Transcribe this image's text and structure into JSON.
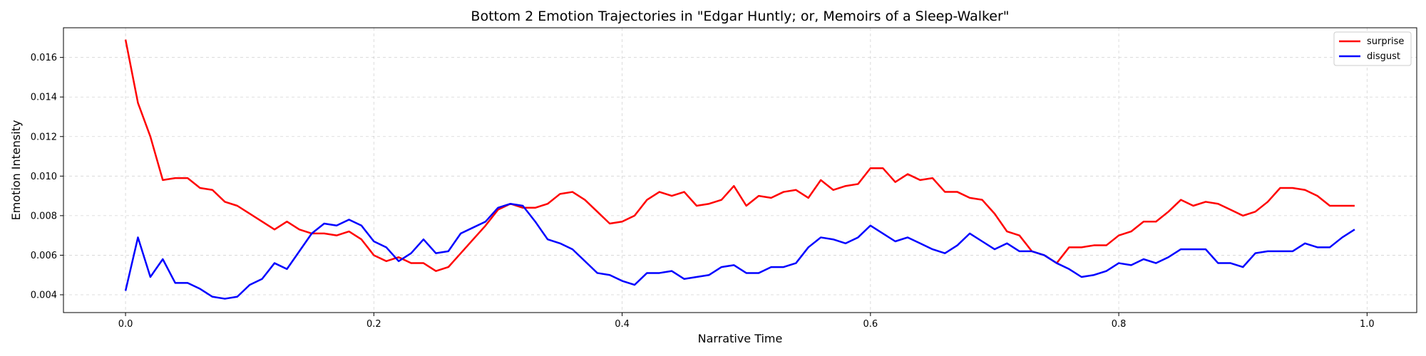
{
  "chart_data": {
    "type": "line",
    "title": "Bottom 2 Emotion Trajectories in \"Edgar Huntly; or, Memoirs of a Sleep-Walker\"",
    "xlabel": "Narrative Time",
    "ylabel": "Emotion Intensity",
    "xlim": [
      -0.05,
      1.04
    ],
    "ylim": [
      0.0031,
      0.0175
    ],
    "xticks": [
      0.0,
      0.2,
      0.4,
      0.6,
      0.8,
      1.0
    ],
    "xtick_labels": [
      "0.0",
      "0.2",
      "0.4",
      "0.6",
      "0.8",
      "1.0"
    ],
    "yticks": [
      0.004,
      0.006,
      0.008,
      0.01,
      0.012,
      0.014,
      0.016
    ],
    "ytick_labels": [
      "0.004",
      "0.006",
      "0.008",
      "0.010",
      "0.012",
      "0.014",
      "0.016"
    ],
    "grid": true,
    "legend_position": "top-right",
    "x": [
      0.0,
      0.01,
      0.02,
      0.03,
      0.04,
      0.05,
      0.06,
      0.07,
      0.08,
      0.09,
      0.1,
      0.11,
      0.12,
      0.13,
      0.14,
      0.15,
      0.16,
      0.17,
      0.18,
      0.19,
      0.2,
      0.21,
      0.22,
      0.23,
      0.24,
      0.25,
      0.26,
      0.27,
      0.28,
      0.29,
      0.3,
      0.31,
      0.32,
      0.33,
      0.34,
      0.35,
      0.36,
      0.37,
      0.38,
      0.39,
      0.4,
      0.41,
      0.42,
      0.43,
      0.44,
      0.45,
      0.46,
      0.47,
      0.48,
      0.49,
      0.5,
      0.51,
      0.52,
      0.53,
      0.54,
      0.55,
      0.56,
      0.57,
      0.58,
      0.59,
      0.6,
      0.61,
      0.62,
      0.63,
      0.64,
      0.65,
      0.66,
      0.67,
      0.68,
      0.69,
      0.7,
      0.71,
      0.72,
      0.73,
      0.74,
      0.75,
      0.76,
      0.77,
      0.78,
      0.79,
      0.8,
      0.81,
      0.82,
      0.83,
      0.84,
      0.85,
      0.86,
      0.87,
      0.88,
      0.89,
      0.9,
      0.91,
      0.92,
      0.93,
      0.94,
      0.95,
      0.96,
      0.97,
      0.98,
      0.99
    ],
    "series": [
      {
        "name": "surprise",
        "color": "#ff0000",
        "values": [
          0.0169,
          0.0137,
          0.012,
          0.0098,
          0.0099,
          0.0099,
          0.0094,
          0.0093,
          0.0087,
          0.0085,
          0.0081,
          0.0077,
          0.0073,
          0.0077,
          0.0073,
          0.0071,
          0.0071,
          0.007,
          0.0072,
          0.0068,
          0.006,
          0.0057,
          0.0059,
          0.0056,
          0.0056,
          0.0052,
          0.0054,
          0.0061,
          0.0068,
          0.0075,
          0.0083,
          0.0086,
          0.0084,
          0.0084,
          0.0086,
          0.0091,
          0.0092,
          0.0088,
          0.0082,
          0.0076,
          0.0077,
          0.008,
          0.0088,
          0.0092,
          0.009,
          0.0092,
          0.0085,
          0.0086,
          0.0088,
          0.0095,
          0.0085,
          0.009,
          0.0089,
          0.0092,
          0.0093,
          0.0089,
          0.0098,
          0.0093,
          0.0095,
          0.0096,
          0.0104,
          0.0104,
          0.0097,
          0.0101,
          0.0098,
          0.0099,
          0.0092,
          0.0092,
          0.0089,
          0.0088,
          0.0081,
          0.0072,
          0.007,
          0.0062,
          0.006,
          0.0056,
          0.0064,
          0.0064,
          0.0065,
          0.0065,
          0.007,
          0.0072,
          0.0077,
          0.0077,
          0.0082,
          0.0088,
          0.0085,
          0.0087,
          0.0086,
          0.0083,
          0.008,
          0.0082,
          0.0087,
          0.0094,
          0.0094,
          0.0093,
          0.009,
          0.0085,
          0.0085,
          0.0085
        ]
      },
      {
        "name": "disgust",
        "color": "#0000ff",
        "values": [
          0.0042,
          0.0069,
          0.0049,
          0.0058,
          0.0046,
          0.0046,
          0.0043,
          0.0039,
          0.0038,
          0.0039,
          0.0045,
          0.0048,
          0.0056,
          0.0053,
          0.0062,
          0.0071,
          0.0076,
          0.0075,
          0.0078,
          0.0075,
          0.0067,
          0.0064,
          0.0057,
          0.0061,
          0.0068,
          0.0061,
          0.0062,
          0.0071,
          0.0074,
          0.0077,
          0.0084,
          0.0086,
          0.0085,
          0.0077,
          0.0068,
          0.0066,
          0.0063,
          0.0057,
          0.0051,
          0.005,
          0.0047,
          0.0045,
          0.0051,
          0.0051,
          0.0052,
          0.0048,
          0.0049,
          0.005,
          0.0054,
          0.0055,
          0.0051,
          0.0051,
          0.0054,
          0.0054,
          0.0056,
          0.0064,
          0.0069,
          0.0068,
          0.0066,
          0.0069,
          0.0075,
          0.0071,
          0.0067,
          0.0069,
          0.0066,
          0.0063,
          0.0061,
          0.0065,
          0.0071,
          0.0067,
          0.0063,
          0.0066,
          0.0062,
          0.0062,
          0.006,
          0.0056,
          0.0053,
          0.0049,
          0.005,
          0.0052,
          0.0056,
          0.0055,
          0.0058,
          0.0056,
          0.0059,
          0.0063,
          0.0063,
          0.0063,
          0.0056,
          0.0056,
          0.0054,
          0.0061,
          0.0062,
          0.0062,
          0.0062,
          0.0066,
          0.0064,
          0.0064,
          0.0069,
          0.0073
        ]
      }
    ]
  }
}
